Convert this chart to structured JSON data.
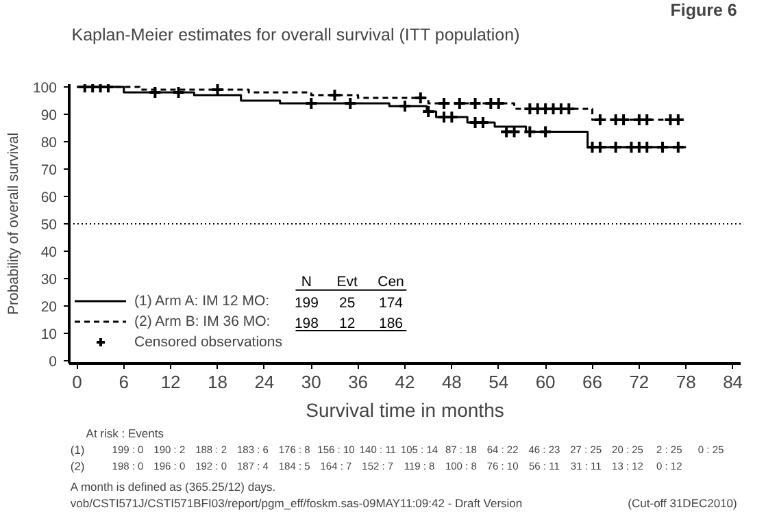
{
  "chart_data": {
    "type": "step",
    "title": "Kaplan-Meier estimates for overall survival (ITT population)",
    "subtitle": "Figure 6",
    "xlabel": "Survival time in months",
    "ylabel": "Probability of overall survival",
    "xlim": [
      -1,
      85
    ],
    "ylim": [
      -1,
      101
    ],
    "xticks": [
      0,
      6,
      12,
      18,
      24,
      30,
      36,
      42,
      48,
      54,
      60,
      66,
      72,
      78,
      84
    ],
    "yticks": [
      0,
      10,
      20,
      30,
      40,
      50,
      60,
      70,
      80,
      90,
      100
    ],
    "grid": false,
    "legend": "bottom left",
    "ref_lines": [
      {
        "axis": "y",
        "value": 50,
        "line_style": "dotted",
        "color": "#000000"
      }
    ],
    "series": [
      {
        "name": "(1) Arm A: IM 12 MO:",
        "color": "#000000",
        "line_style": "solid",
        "x": [
          0,
          6,
          15,
          21,
          26,
          40,
          44.8,
          46,
          50,
          53.5,
          57.5,
          65.4,
          78
        ],
        "values": [
          100,
          98,
          97,
          95,
          94,
          93,
          91,
          89,
          87,
          85.5,
          83.6,
          78,
          78
        ]
      },
      {
        "name": "(2) Arm B: IM 36 MO:",
        "color": "#000000",
        "line_style": "dashed",
        "x": [
          0,
          8,
          22,
          30,
          36,
          45,
          56,
          66,
          78
        ],
        "values": [
          100,
          99,
          98,
          97,
          96,
          94,
          92,
          88,
          88
        ]
      },
      {
        "name": "Censored observations",
        "type": "scatter",
        "marker": "cross",
        "color": "#000000",
        "x": [
          1,
          2,
          3,
          4,
          10,
          13,
          30,
          35,
          42,
          45,
          47,
          48,
          51,
          52,
          55,
          56,
          58,
          60,
          66,
          67,
          69,
          71,
          72,
          73,
          75,
          77,
          18,
          33,
          44,
          47,
          49,
          51,
          53,
          54,
          58,
          59,
          60,
          61,
          62,
          63,
          67,
          69,
          70,
          72,
          73,
          76,
          77
        ],
        "values": [
          100,
          100,
          100,
          100,
          98,
          98,
          94,
          94,
          93,
          91,
          89,
          89,
          87,
          87,
          83.6,
          83.6,
          83.6,
          83.6,
          78,
          78,
          78,
          78,
          78,
          78,
          78,
          78,
          99,
          97,
          96,
          94,
          94,
          94,
          94,
          94,
          92,
          92,
          92,
          92,
          92,
          92,
          88,
          88,
          88,
          88,
          88,
          88,
          88
        ]
      }
    ],
    "annotations": [
      "N  Evt  Cen",
      "199  25  174",
      "198  12  186",
      "At risk : Events",
      "(1)  199 : 0  190 : 2  188 : 2  183 : 6  176 : 8  156 : 10  140 : 11  105 : 14  87 : 18  64 : 22  46 : 23  27 : 25  20 : 25  2 : 25  0 : 25",
      "(2)  198 : 0  196 : 0  192 : 0  187 : 4  184 : 5  164 : 7  152 : 7  119 : 8  100 : 8  76 : 10  56 : 11  31 : 11  13 : 12  0 : 12",
      "A month is defined as (365.25/12) days.",
      "vob/CSTI571J/CSTI571BFI03/report/pgm_eff/foskm.sas-09MAY11:09:42 - Draft Version",
      "(Cut-off 31DEC2010)"
    ]
  }
}
